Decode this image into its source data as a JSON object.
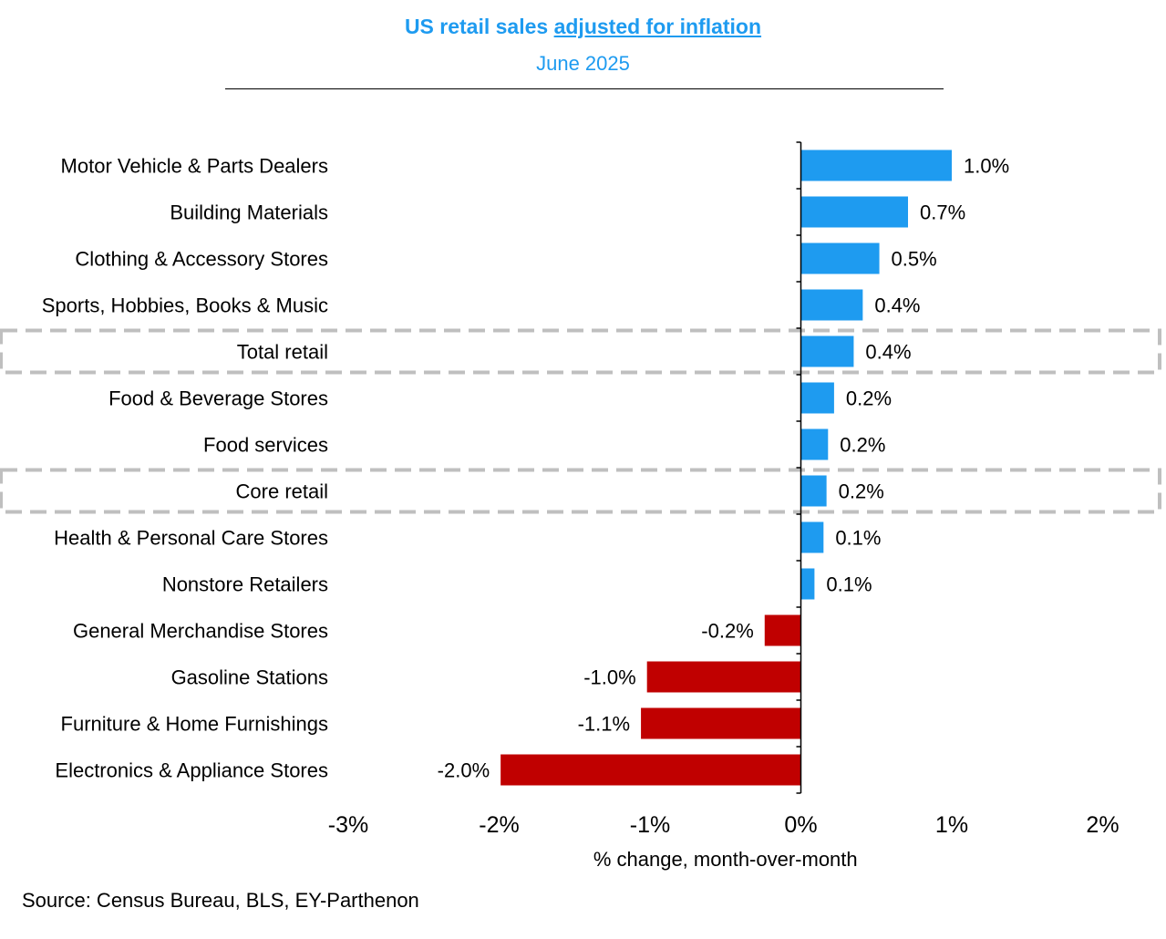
{
  "header": {
    "title_plain": "US retail sales ",
    "title_underlined": "adjusted for inflation",
    "subtitle": "June 2025"
  },
  "footer": {
    "source": "Source: Census Bureau, BLS, EY-Parthenon"
  },
  "colors": {
    "positive": "#1e9bf0",
    "negative": "#c00000",
    "title": "#1e9bf0",
    "highlight_box": "#bfbfbf"
  },
  "chart_data": {
    "type": "bar",
    "orientation": "horizontal",
    "title": "US retail sales adjusted for inflation",
    "subtitle": "June 2025",
    "xlabel": "% change, month-over-month",
    "ylabel": "",
    "xlim": [
      -3,
      2
    ],
    "xticks": [
      -3,
      -2,
      -1,
      0,
      1,
      2
    ],
    "xtick_labels": [
      "-3%",
      "-2%",
      "-1%",
      "0%",
      "1%",
      "2%"
    ],
    "grid": false,
    "categories": [
      "Motor Vehicle & Parts Dealers",
      "Building Materials",
      "Clothing & Accessory Stores",
      "Sports, Hobbies, Books & Music",
      "Total retail",
      "Food & Beverage Stores",
      "Food services",
      "Core retail",
      "Health & Personal Care Stores",
      "Nonstore Retailers",
      "General Merchandise Stores",
      "Gasoline Stations",
      "Furniture & Home Furnishings",
      "Electronics & Appliance Stores"
    ],
    "values": [
      1.0,
      0.71,
      0.52,
      0.41,
      0.35,
      0.22,
      0.18,
      0.17,
      0.15,
      0.09,
      -0.24,
      -1.02,
      -1.06,
      -1.99
    ],
    "value_labels": [
      "1.0%",
      "0.7%",
      "0.5%",
      "0.4%",
      "0.4%",
      "0.2%",
      "0.2%",
      "0.2%",
      "0.1%",
      "0.1%",
      "-0.2%",
      "-1.0%",
      "-1.1%",
      "-2.0%"
    ],
    "highlighted": [
      "Total retail",
      "Core retail"
    ]
  }
}
